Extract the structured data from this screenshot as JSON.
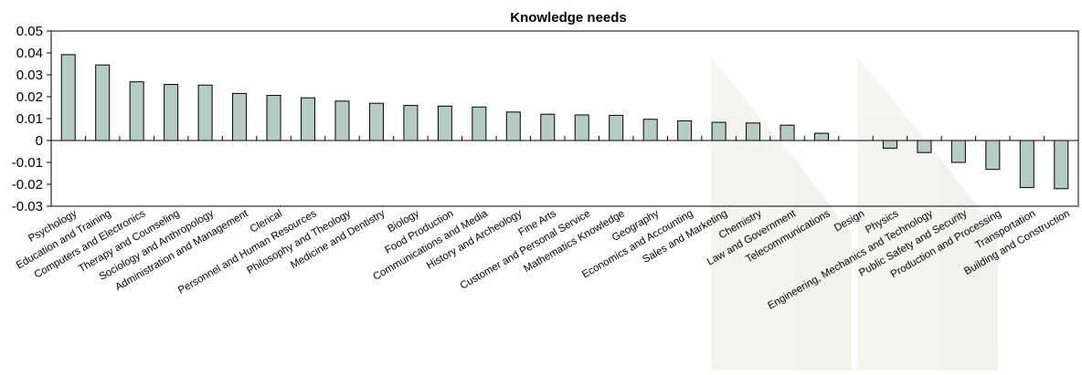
{
  "chart_data": {
    "type": "bar",
    "title": "Knowledge needs",
    "xlabel": "",
    "ylabel": "",
    "ylim": [
      -0.03,
      0.05
    ],
    "yticks": [
      0.05,
      0.04,
      0.03,
      0.02,
      0.01,
      0,
      -0.01,
      -0.02,
      -0.03
    ],
    "ytick_labels": [
      "0.05",
      "0.04",
      "0.03",
      "0.02",
      "0.01",
      "0",
      "-0.01",
      "-0.02",
      "-0.03"
    ],
    "grid": false,
    "legend": "none",
    "bar_color": "#b4ccc4",
    "bar_stroke": "#000000",
    "categories": [
      "Psychology",
      "Education and Training",
      "Computers and Electronics",
      "Therapy and Counseling",
      "Sociology and Anthropology",
      "Administration and Management",
      "Clerical",
      "Personnel and Human Resources",
      "Philosophy and Theology",
      "Medicine and Dentistry",
      "Biology",
      "Food Production",
      "Communications and Media",
      "History and Archeology",
      "Fine Arts",
      "Customer and Personal Service",
      "Mathematics Knowledge",
      "Geography",
      "Economics and Accounting",
      "Sales and Marketing",
      "Chemistry",
      "Law and Government",
      "Telecommunications",
      "Design",
      "Physics",
      "Engineering, Mechanics and Technology",
      "Public Safety and Security",
      "Production and Processing",
      "Transportation",
      "Building and Construction"
    ],
    "values": [
      0.0392,
      0.0345,
      0.0268,
      0.0256,
      0.0253,
      0.0215,
      0.0206,
      0.0195,
      0.018,
      0.017,
      0.016,
      0.0157,
      0.0153,
      0.013,
      0.012,
      0.0117,
      0.0115,
      0.0097,
      0.009,
      0.0083,
      0.008,
      0.007,
      0.0033,
      0.0,
      -0.0035,
      -0.0055,
      -0.01,
      -0.0132,
      -0.0215,
      -0.022
    ]
  }
}
